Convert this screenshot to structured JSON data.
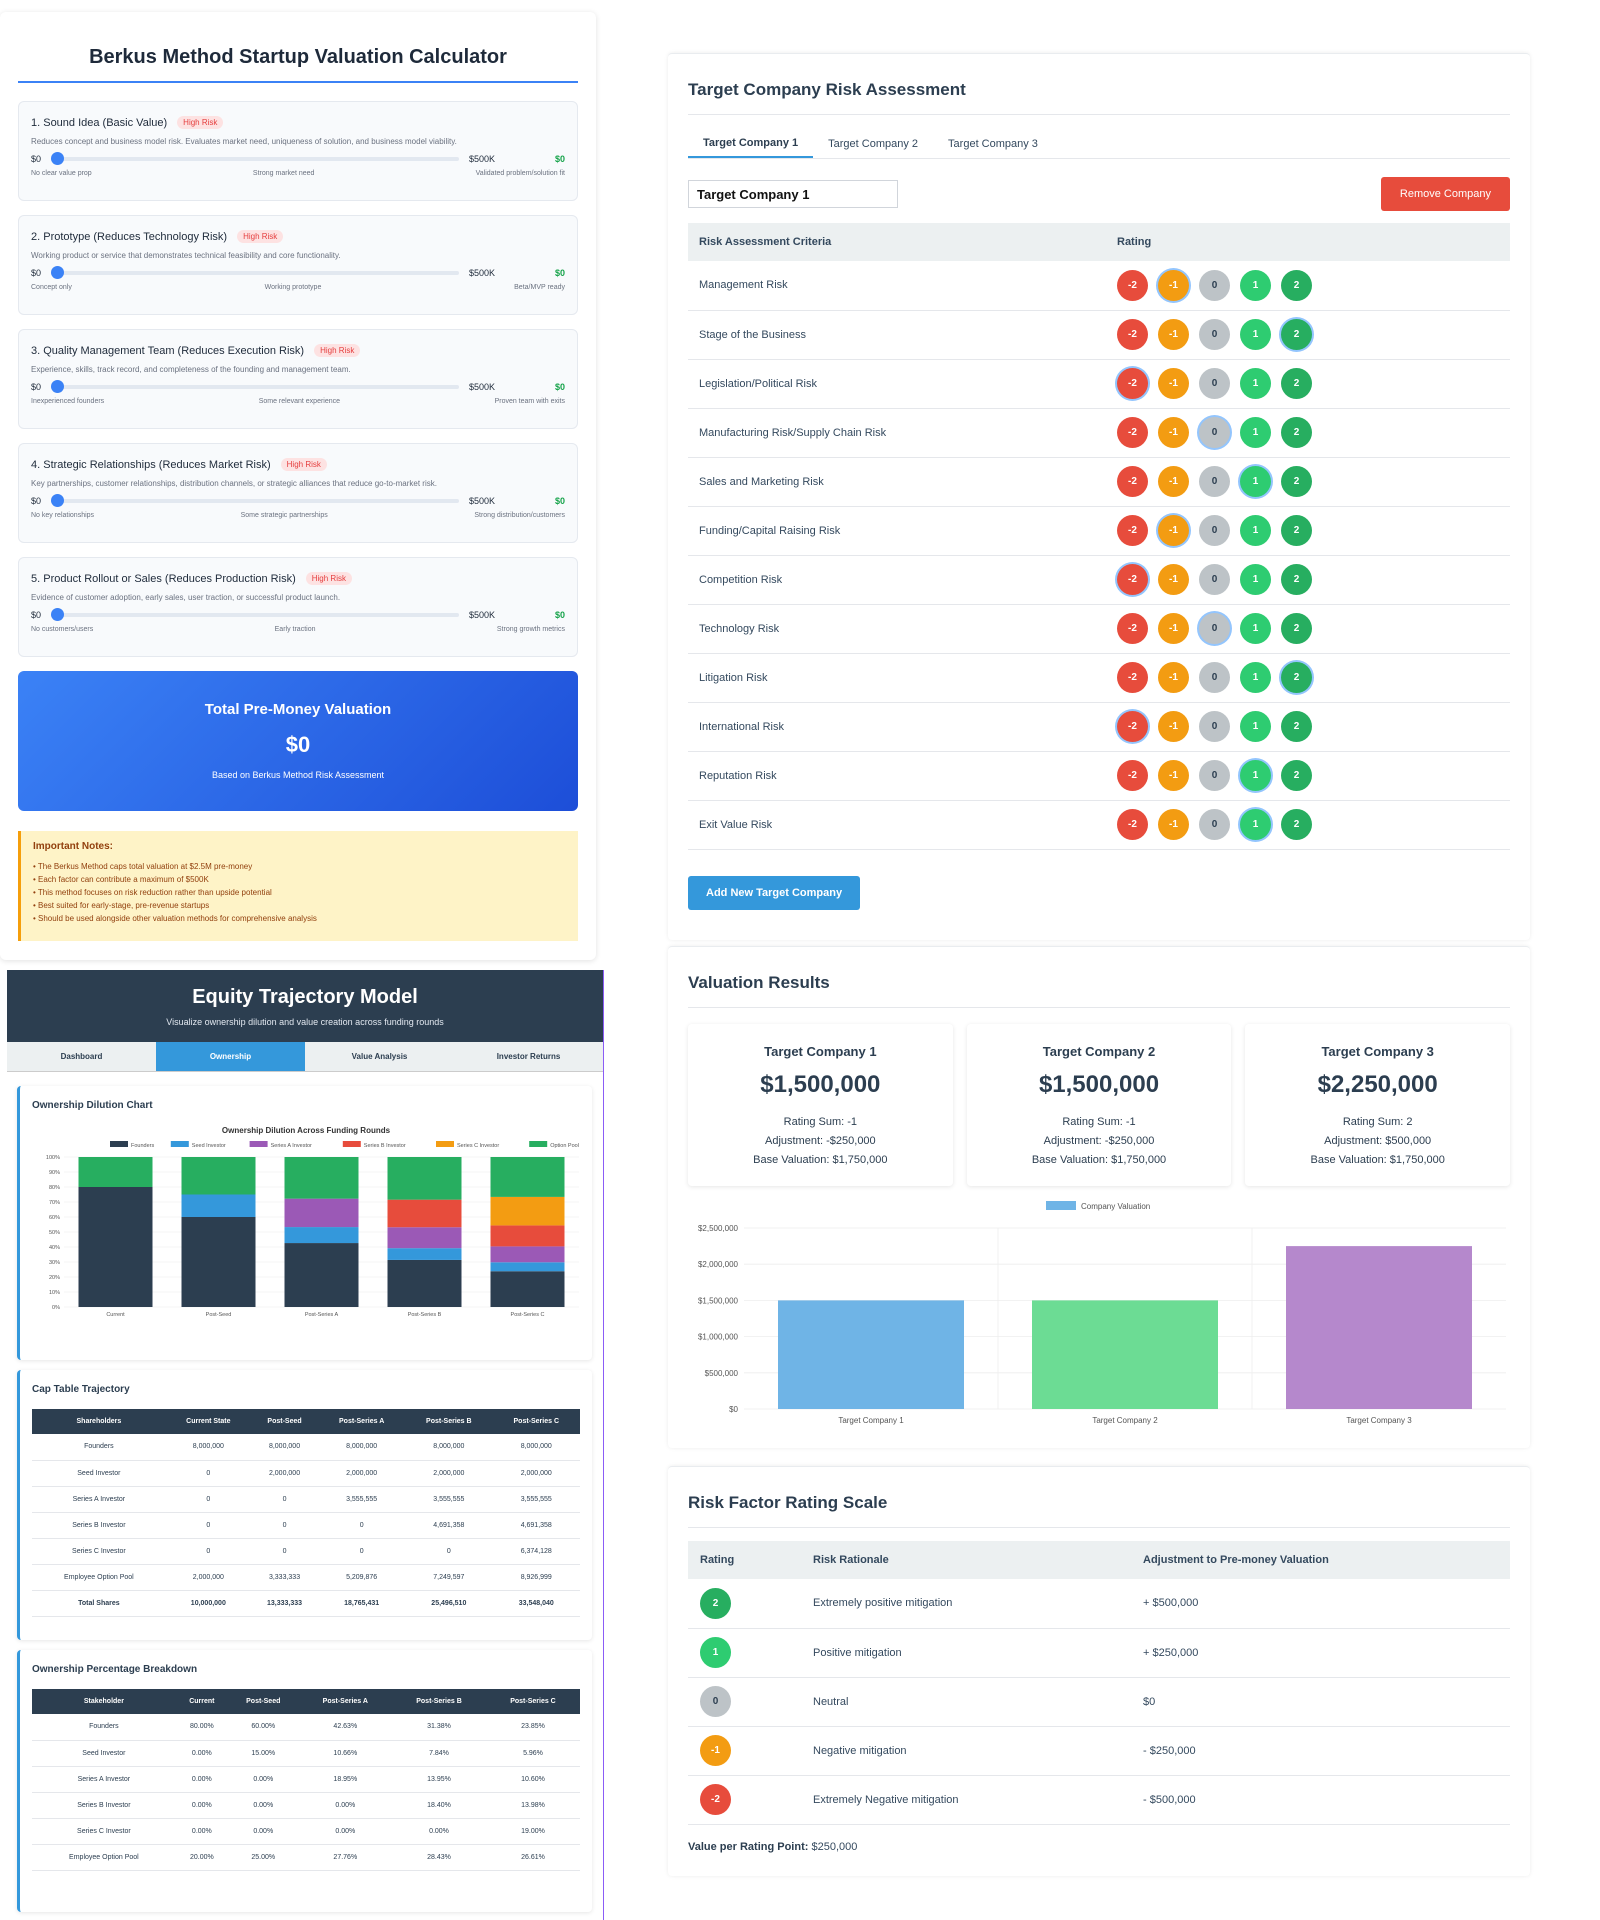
{
  "berkus": {
    "title": "Berkus Method Startup Valuation Calculator",
    "factors": [
      {
        "name": "1. Sound Idea (Basic Value)",
        "risk": "High Risk",
        "desc": "Reduces concept and business model risk. Evaluates market need, uniqueness of solution, and business model viability.",
        "min": "$0",
        "max": "$500K",
        "value": "$0",
        "labels": [
          "No clear value prop",
          "Strong market need",
          "Validated problem/solution fit"
        ]
      },
      {
        "name": "2. Prototype (Reduces Technology Risk)",
        "risk": "High Risk",
        "desc": "Working product or service that demonstrates technical feasibility and core functionality.",
        "min": "$0",
        "max": "$500K",
        "value": "$0",
        "labels": [
          "Concept only",
          "Working prototype",
          "Beta/MVP ready"
        ]
      },
      {
        "name": "3. Quality Management Team (Reduces Execution Risk)",
        "risk": "High Risk",
        "desc": "Experience, skills, track record, and completeness of the founding and management team.",
        "min": "$0",
        "max": "$500K",
        "value": "$0",
        "labels": [
          "Inexperienced founders",
          "Some relevant experience",
          "Proven team with exits"
        ]
      },
      {
        "name": "4. Strategic Relationships (Reduces Market Risk)",
        "risk": "High Risk",
        "desc": "Key partnerships, customer relationships, distribution channels, or strategic alliances that reduce go-to-market risk.",
        "min": "$0",
        "max": "$500K",
        "value": "$0",
        "labels": [
          "No key relationships",
          "Some strategic partnerships",
          "Strong distribution/customers"
        ]
      },
      {
        "name": "5. Product Rollout or Sales (Reduces Production Risk)",
        "risk": "High Risk",
        "desc": "Evidence of customer adoption, early sales, user traction, or successful product launch.",
        "min": "$0",
        "max": "$500K",
        "value": "$0",
        "labels": [
          "No customers/users",
          "Early traction",
          "Strong growth metrics"
        ]
      }
    ],
    "total": {
      "title": "Total Pre-Money Valuation",
      "value": "$0",
      "subtitle": "Based on Berkus Method Risk Assessment"
    },
    "notes": {
      "title": "Important Notes:",
      "items": [
        "• The Berkus Method caps total valuation at $2.5M pre-money",
        "• Each factor can contribute a maximum of $500K",
        "• This method focuses on risk reduction rather than upside potential",
        "• Best suited for early-stage, pre-revenue startups",
        "• Should be used alongside other valuation methods for comprehensive analysis"
      ]
    }
  },
  "equity": {
    "title": "Equity Trajectory Model",
    "subtitle": "Visualize ownership dilution and value creation across funding rounds",
    "tabs": [
      "Dashboard",
      "Ownership",
      "Value Analysis",
      "Investor Returns"
    ],
    "active_tab": 1,
    "dilution_title": "Ownership Dilution Chart",
    "cap_title": "Cap Table Trajectory",
    "cap_headers": [
      "Shareholders",
      "Current State",
      "Post-Seed",
      "Post-Series A",
      "Post-Series B",
      "Post-Series C"
    ],
    "cap_rows": [
      [
        "Founders",
        "8,000,000",
        "8,000,000",
        "8,000,000",
        "8,000,000",
        "8,000,000"
      ],
      [
        "Seed Investor",
        "0",
        "2,000,000",
        "2,000,000",
        "2,000,000",
        "2,000,000"
      ],
      [
        "Series A Investor",
        "0",
        "0",
        "3,555,555",
        "3,555,555",
        "3,555,555"
      ],
      [
        "Series B Investor",
        "0",
        "0",
        "0",
        "4,691,358",
        "4,691,358"
      ],
      [
        "Series C Investor",
        "0",
        "0",
        "0",
        "0",
        "6,374,128"
      ],
      [
        "Employee Option Pool",
        "2,000,000",
        "3,333,333",
        "5,209,876",
        "7,249,597",
        "8,926,999"
      ],
      [
        "Total Shares",
        "10,000,000",
        "13,333,333",
        "18,765,431",
        "25,496,510",
        "33,548,040"
      ]
    ],
    "pct_title": "Ownership Percentage Breakdown",
    "pct_headers": [
      "Stakeholder",
      "Current",
      "Post-Seed",
      "Post-Series A",
      "Post-Series B",
      "Post-Series C"
    ],
    "pct_rows": [
      [
        "Founders",
        "80.00%",
        "60.00%",
        "42.63%",
        "31.38%",
        "23.85%"
      ],
      [
        "Seed Investor",
        "0.00%",
        "15.00%",
        "10.66%",
        "7.84%",
        "5.96%"
      ],
      [
        "Series A Investor",
        "0.00%",
        "0.00%",
        "18.95%",
        "13.95%",
        "10.60%"
      ],
      [
        "Series B Investor",
        "0.00%",
        "0.00%",
        "0.00%",
        "18.40%",
        "13.98%"
      ],
      [
        "Series C Investor",
        "0.00%",
        "0.00%",
        "0.00%",
        "0.00%",
        "19.00%"
      ],
      [
        "Employee Option Pool",
        "20.00%",
        "25.00%",
        "27.76%",
        "28.43%",
        "26.61%"
      ]
    ]
  },
  "risk": {
    "title": "Target Company Risk Assessment",
    "tabs": [
      "Target Company 1",
      "Target Company 2",
      "Target Company 3"
    ],
    "active_tab": 0,
    "company_name": "Target Company 1",
    "remove_label": "Remove Company",
    "headers": [
      "Risk Assessment Criteria",
      "Rating"
    ],
    "rating_options": [
      "-2",
      "-1",
      "0",
      "1",
      "2"
    ],
    "criteria": [
      {
        "name": "Management Risk",
        "selected": "-1"
      },
      {
        "name": "Stage of the Business",
        "selected": "2"
      },
      {
        "name": "Legislation/Political Risk",
        "selected": "-2"
      },
      {
        "name": "Manufacturing Risk/Supply Chain Risk",
        "selected": "0"
      },
      {
        "name": "Sales and Marketing Risk",
        "selected": "1"
      },
      {
        "name": "Funding/Capital Raising Risk",
        "selected": "-1"
      },
      {
        "name": "Competition Risk",
        "selected": "-2"
      },
      {
        "name": "Technology Risk",
        "selected": "0"
      },
      {
        "name": "Litigation Risk",
        "selected": "2"
      },
      {
        "name": "International Risk",
        "selected": "-2"
      },
      {
        "name": "Reputation Risk",
        "selected": "1"
      },
      {
        "name": "Exit Value Risk",
        "selected": "1"
      }
    ],
    "add_label": "Add New Target Company"
  },
  "results": {
    "title": "Valuation Results",
    "cards": [
      {
        "name": "Target Company 1",
        "value": "$1,500,000",
        "sum": "Rating Sum: -1",
        "adj": "Adjustment: -$250,000",
        "base": "Base Valuation: $1,750,000"
      },
      {
        "name": "Target Company 2",
        "value": "$1,500,000",
        "sum": "Rating Sum: -1",
        "adj": "Adjustment: -$250,000",
        "base": "Base Valuation: $1,750,000"
      },
      {
        "name": "Target Company 3",
        "value": "$2,250,000",
        "sum": "Rating Sum: 2",
        "adj": "Adjustment: $500,000",
        "base": "Base Valuation: $1,750,000"
      }
    ]
  },
  "scale": {
    "title": "Risk Factor Rating Scale",
    "headers": [
      "Rating",
      "Risk Rationale",
      "Adjustment to Pre-money Valuation"
    ],
    "rows": [
      {
        "rating": "2",
        "rationale": "Extremely positive mitigation",
        "adj": "+ $500,000"
      },
      {
        "rating": "1",
        "rationale": "Positive mitigation",
        "adj": "+ $250,000"
      },
      {
        "rating": "0",
        "rationale": "Neutral",
        "adj": "$0"
      },
      {
        "rating": "-1",
        "rationale": "Negative mitigation",
        "adj": "- $250,000"
      },
      {
        "rating": "-2",
        "rationale": "Extremely Negative mitigation",
        "adj": "- $500,000"
      }
    ],
    "vpr_label": "Value per Rating Point:",
    "vpr_value": "$250,000"
  },
  "colors": {
    "-2": "#e74c3c",
    "-1": "#f39c12",
    "0": "#bdc3c7",
    "1": "#2ecc71",
    "2": "#27ae60"
  },
  "chart_data": [
    {
      "type": "bar",
      "stacked": true,
      "title": "Ownership Dilution Across Funding Rounds",
      "categories": [
        "Current",
        "Post-Seed",
        "Post-Series A",
        "Post-Series B",
        "Post-Series C"
      ],
      "ylim": [
        0,
        100
      ],
      "yticks": [
        "0%",
        "10%",
        "20%",
        "30%",
        "40%",
        "50%",
        "60%",
        "70%",
        "80%",
        "90%",
        "100%"
      ],
      "legend_position": "top",
      "series": [
        {
          "name": "Founders",
          "color": "#2c3e50",
          "values": [
            80.0,
            60.0,
            42.63,
            31.38,
            23.85
          ]
        },
        {
          "name": "Seed Investor",
          "color": "#3498db",
          "values": [
            0,
            15.0,
            10.66,
            7.84,
            5.96
          ]
        },
        {
          "name": "Series A Investor",
          "color": "#9b59b6",
          "values": [
            0,
            0,
            18.95,
            13.95,
            10.6
          ]
        },
        {
          "name": "Series B Investor",
          "color": "#e74c3c",
          "values": [
            0,
            0,
            0,
            18.4,
            13.98
          ]
        },
        {
          "name": "Series C Investor",
          "color": "#f39c12",
          "values": [
            0,
            0,
            0,
            0,
            19.0
          ]
        },
        {
          "name": "Option Pool",
          "color": "#27ae60",
          "values": [
            20.0,
            25.0,
            27.76,
            28.43,
            26.61
          ]
        }
      ]
    },
    {
      "type": "bar",
      "categories": [
        "Target Company 1",
        "Target Company 2",
        "Target Company 3"
      ],
      "series": [
        {
          "name": "Company Valuation",
          "values": [
            1500000,
            1500000,
            2250000
          ]
        }
      ],
      "bar_colors": [
        "#6fb4e6",
        "#6cdc94",
        "#b588cc"
      ],
      "legend_color": "#6fb4e6",
      "ylim": [
        0,
        2500000
      ],
      "yticks": [
        "$0",
        "$500,000",
        "$1,000,000",
        "$1,500,000",
        "$2,000,000",
        "$2,500,000"
      ],
      "legend_position": "top"
    }
  ]
}
